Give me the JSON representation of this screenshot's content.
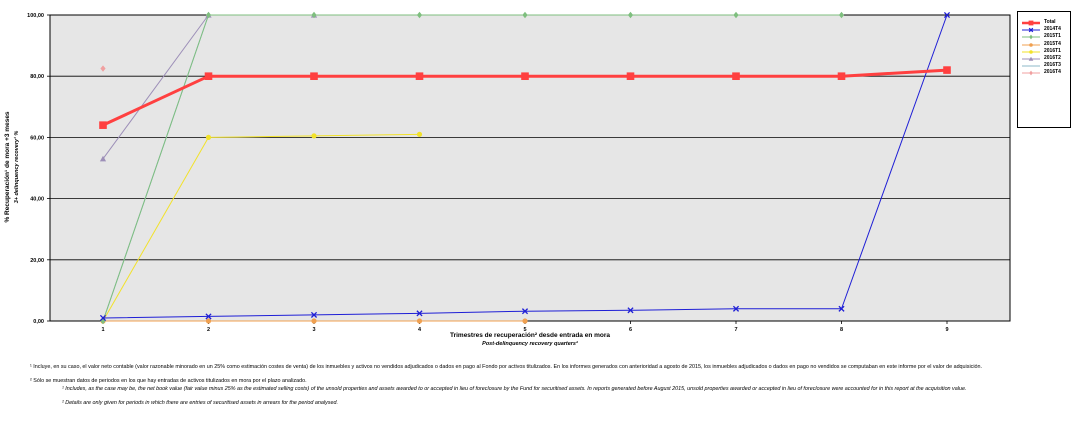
{
  "chart_data": {
    "type": "line",
    "x": [
      1,
      2,
      3,
      4,
      5,
      6,
      7,
      8,
      9
    ],
    "x_tick_labels": [
      "1",
      "2",
      "3",
      "4",
      "5",
      "6",
      "7",
      "8",
      "9"
    ],
    "y_tick_labels": [
      "0,00",
      "20,00",
      "40,00",
      "60,00",
      "80,00",
      "100,00"
    ],
    "ylim": [
      0,
      100
    ],
    "xlabel": "Trimestres de recuperación² desde entrada en mora",
    "xlabel_en": "Post-delinquency recovery quarters²",
    "ylabel": "% Recuperación¹ de mora +3 meses",
    "ylabel_en": "3+ delinquency recovery¹ %",
    "grid": true,
    "legend_position": "right",
    "series": [
      {
        "name": "Total",
        "color": "#ff4040",
        "marker": "square",
        "width": 3,
        "values": [
          64,
          80,
          80,
          80,
          80,
          80,
          80,
          80,
          82
        ]
      },
      {
        "name": "2014T4",
        "color": "#1f1fd6",
        "marker": "x",
        "width": 1,
        "values": [
          1,
          1.5,
          2,
          2.5,
          3.2,
          3.5,
          4,
          4,
          100
        ]
      },
      {
        "name": "2015T1",
        "color": "#7fbf7f",
        "marker": "diamond",
        "width": 1,
        "values": [
          0,
          100,
          100,
          100,
          100,
          100,
          100,
          100,
          null
        ]
      },
      {
        "name": "2015T4",
        "color": "#f0a050",
        "marker": "circle",
        "width": 1,
        "values": [
          0,
          0,
          0,
          0,
          0,
          null,
          null,
          null,
          null
        ]
      },
      {
        "name": "2016T1",
        "color": "#f2e22a",
        "marker": "circle",
        "width": 1,
        "values": [
          0,
          60,
          60.5,
          61,
          null,
          null,
          null,
          null,
          null
        ]
      },
      {
        "name": "2016T2",
        "color": "#9d8fb8",
        "marker": "triangle",
        "width": 1,
        "values": [
          53,
          100,
          100,
          null,
          null,
          null,
          null,
          null,
          null
        ]
      },
      {
        "name": "2016T3",
        "color": "#8cb8c8",
        "marker": "none",
        "width": 1,
        "values": [
          0,
          100,
          null,
          null,
          null,
          null,
          null,
          null,
          null
        ]
      },
      {
        "name": "2016T4",
        "color": "#f0a0a0",
        "marker": "diamond",
        "width": 1,
        "values": [
          82.5,
          null,
          null,
          null,
          null,
          null,
          null,
          null,
          null
        ]
      }
    ]
  },
  "footnotes": {
    "es1": "¹ Incluye, en su caso, el valor neto contable (valor razonable minorado en un 25% como estimación costes de venta) de los inmuebles y activos no vendidos adjudicados o dados en pago al Fondo por activos titulizados. En los informes generados con anterioridad a agosto de 2015, los inmuebles adjudicados o dados en pago no vendidos se computaban en este informe por el valor de adquisición.",
    "es2": "² Sólo se muestran datos de periodos en los que hay entradas de activos titulizados en mora por el plazo analizado.",
    "en1": "¹ Includes, as the case may be, the net book value (fair value minus 25% as the estimated selling costs) of the unsold properties and assets awarded to or accepted in lieu of foreclosure by the Fund for securitised assets. In reports generated before August 2015, unsold properties awarded or accepted in lieu of foreclosure were accounted for in this report at the acquisition value.",
    "en2": "² Details are only given for periods in which there are entries of securitised assets in arrears for the period analysed."
  }
}
